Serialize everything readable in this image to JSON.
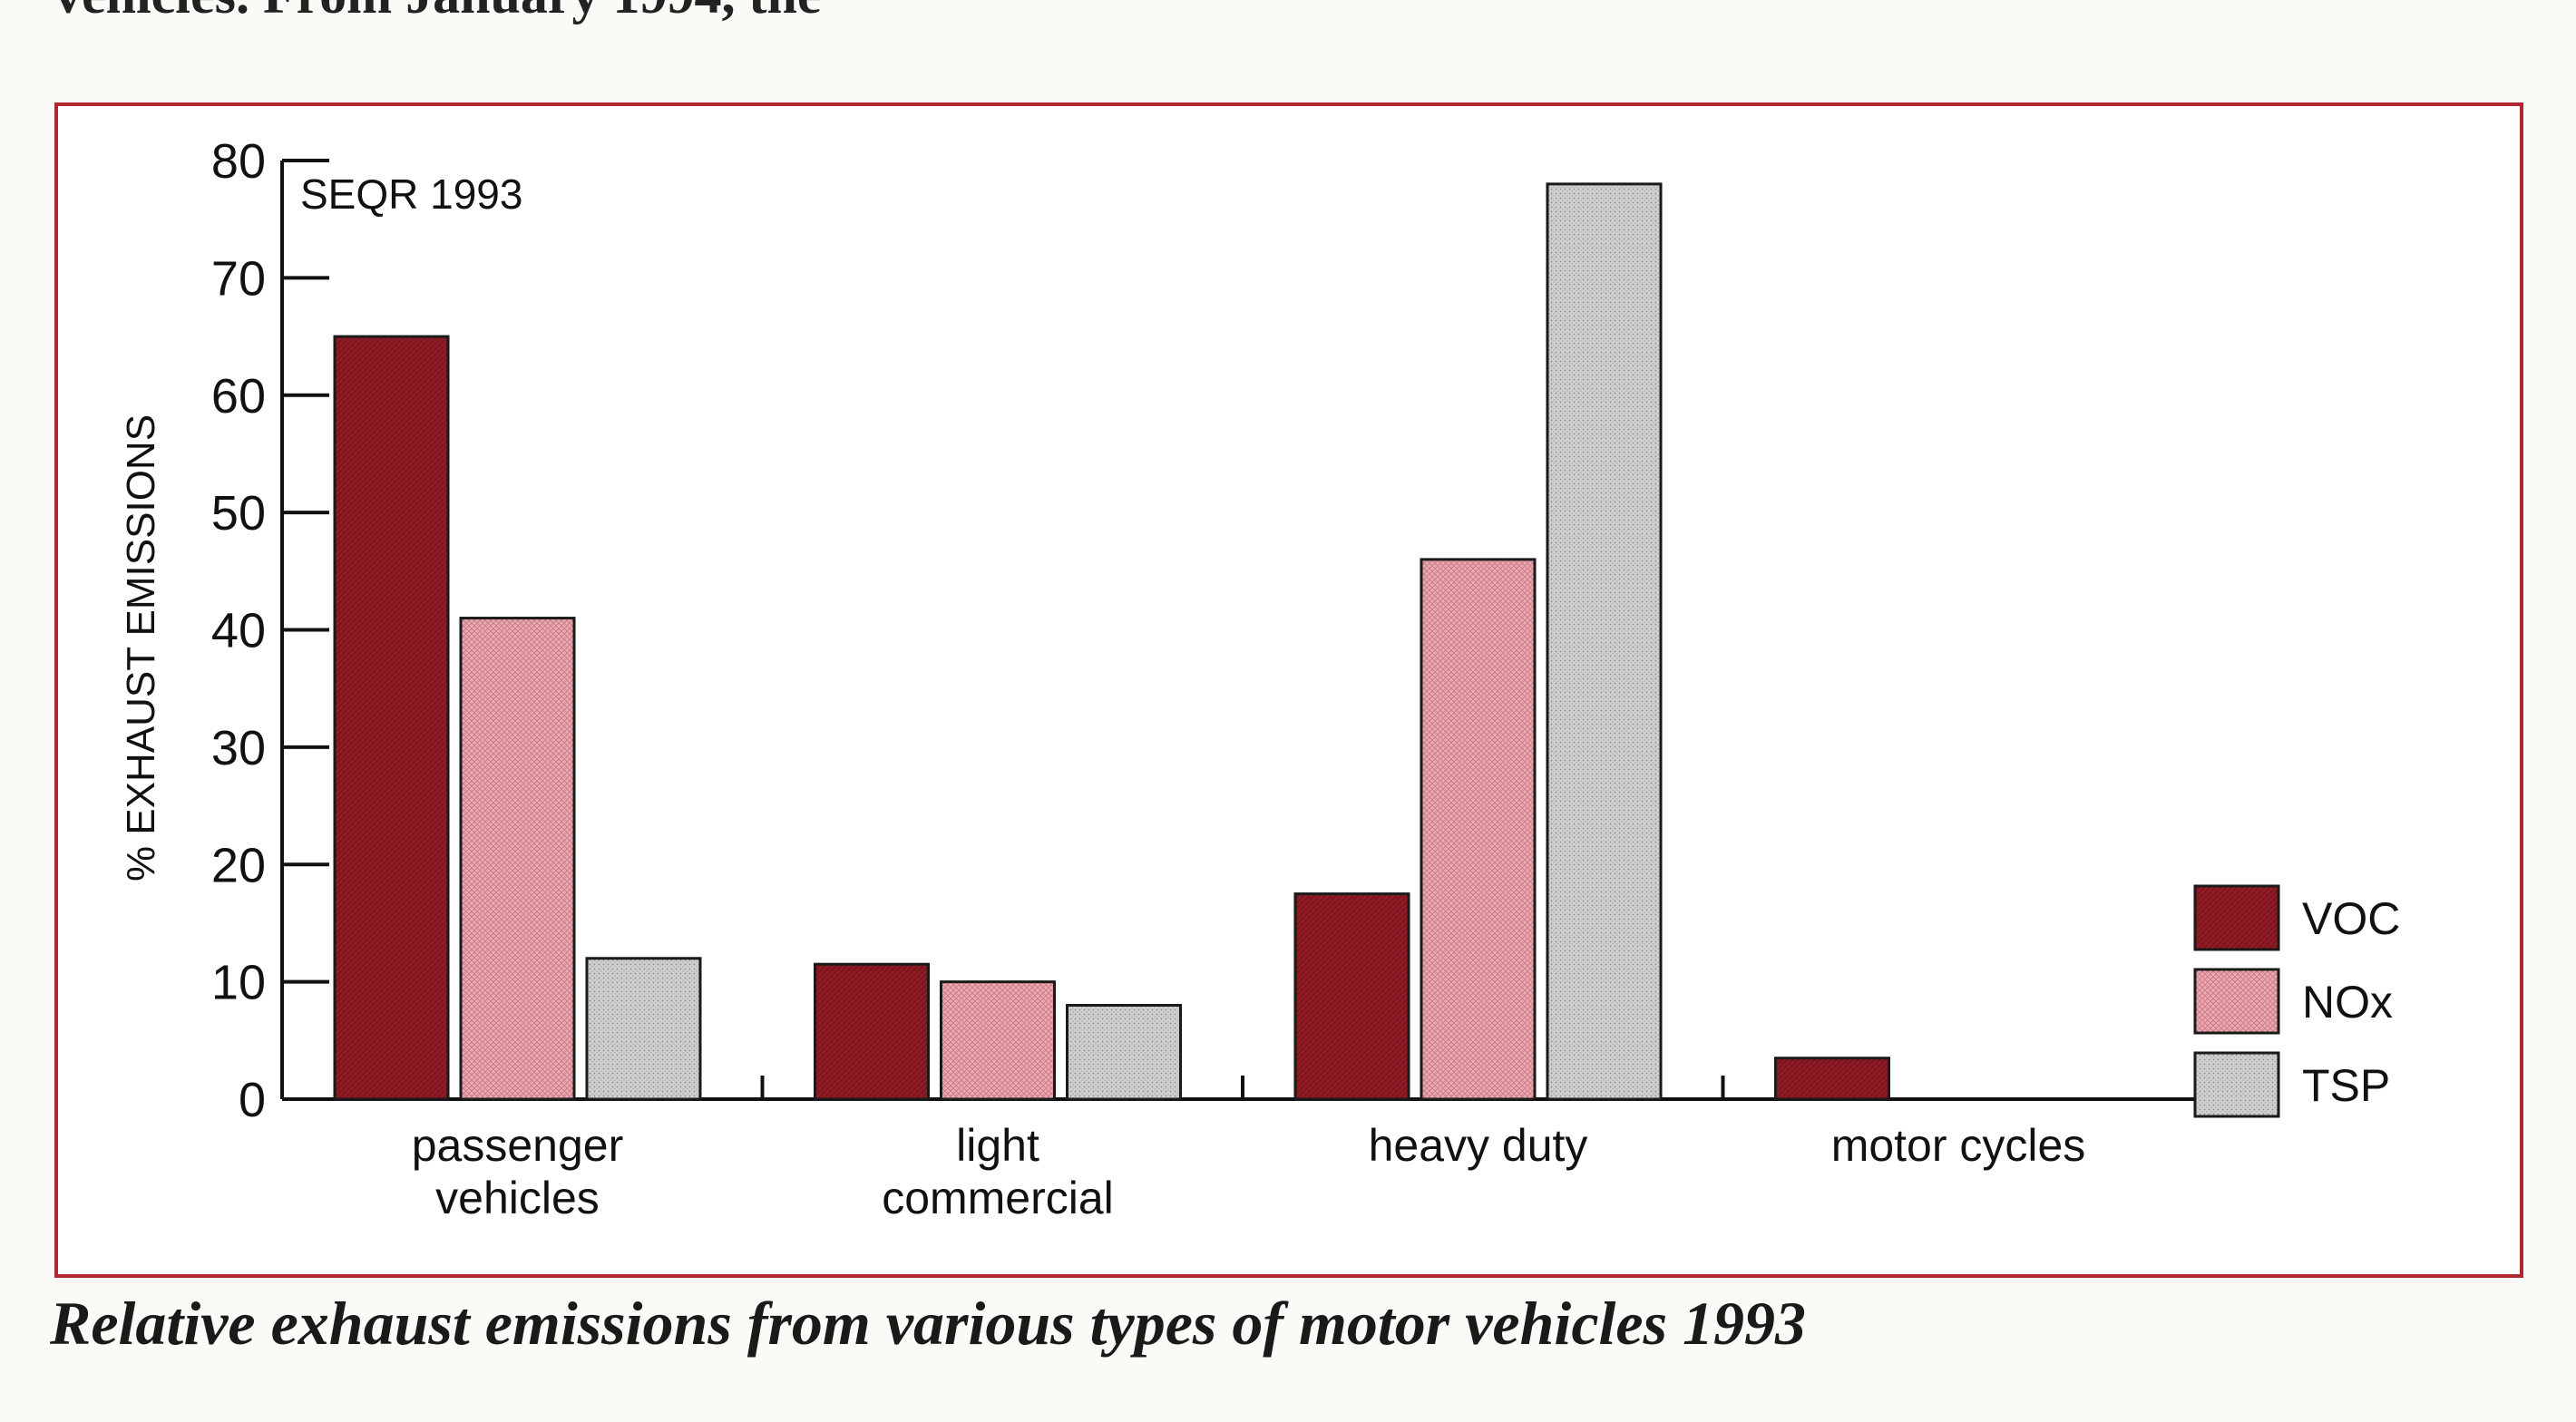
{
  "page": {
    "top_text": "vehicles. From January 1994, the",
    "caption": "Relative exhaust emissions from various types of motor vehicles  1993"
  },
  "colors": {
    "frame": "#b02631",
    "VOC": "#8e1a24",
    "NOx": "#e6a3ab",
    "TSP": "#c8c8c8"
  },
  "chart_data": {
    "type": "bar",
    "title": "",
    "annotation": "SEQR 1993",
    "xlabel": "",
    "ylabel": "% EXHAUST EMISSIONS",
    "ylim": [
      0,
      80
    ],
    "yticks": [
      0,
      10,
      20,
      30,
      40,
      50,
      60,
      70,
      80
    ],
    "grid": false,
    "legend_position": "right",
    "categories": [
      [
        "passenger",
        "vehicles"
      ],
      [
        "light",
        "commercial"
      ],
      [
        "heavy duty"
      ],
      [
        "motor cycles"
      ]
    ],
    "series": [
      {
        "name": "VOC",
        "values": [
          65,
          11.5,
          17.5,
          3.5
        ]
      },
      {
        "name": "NOx",
        "values": [
          41,
          10,
          46,
          0
        ]
      },
      {
        "name": "TSP",
        "values": [
          12,
          8,
          78,
          0
        ]
      }
    ]
  }
}
